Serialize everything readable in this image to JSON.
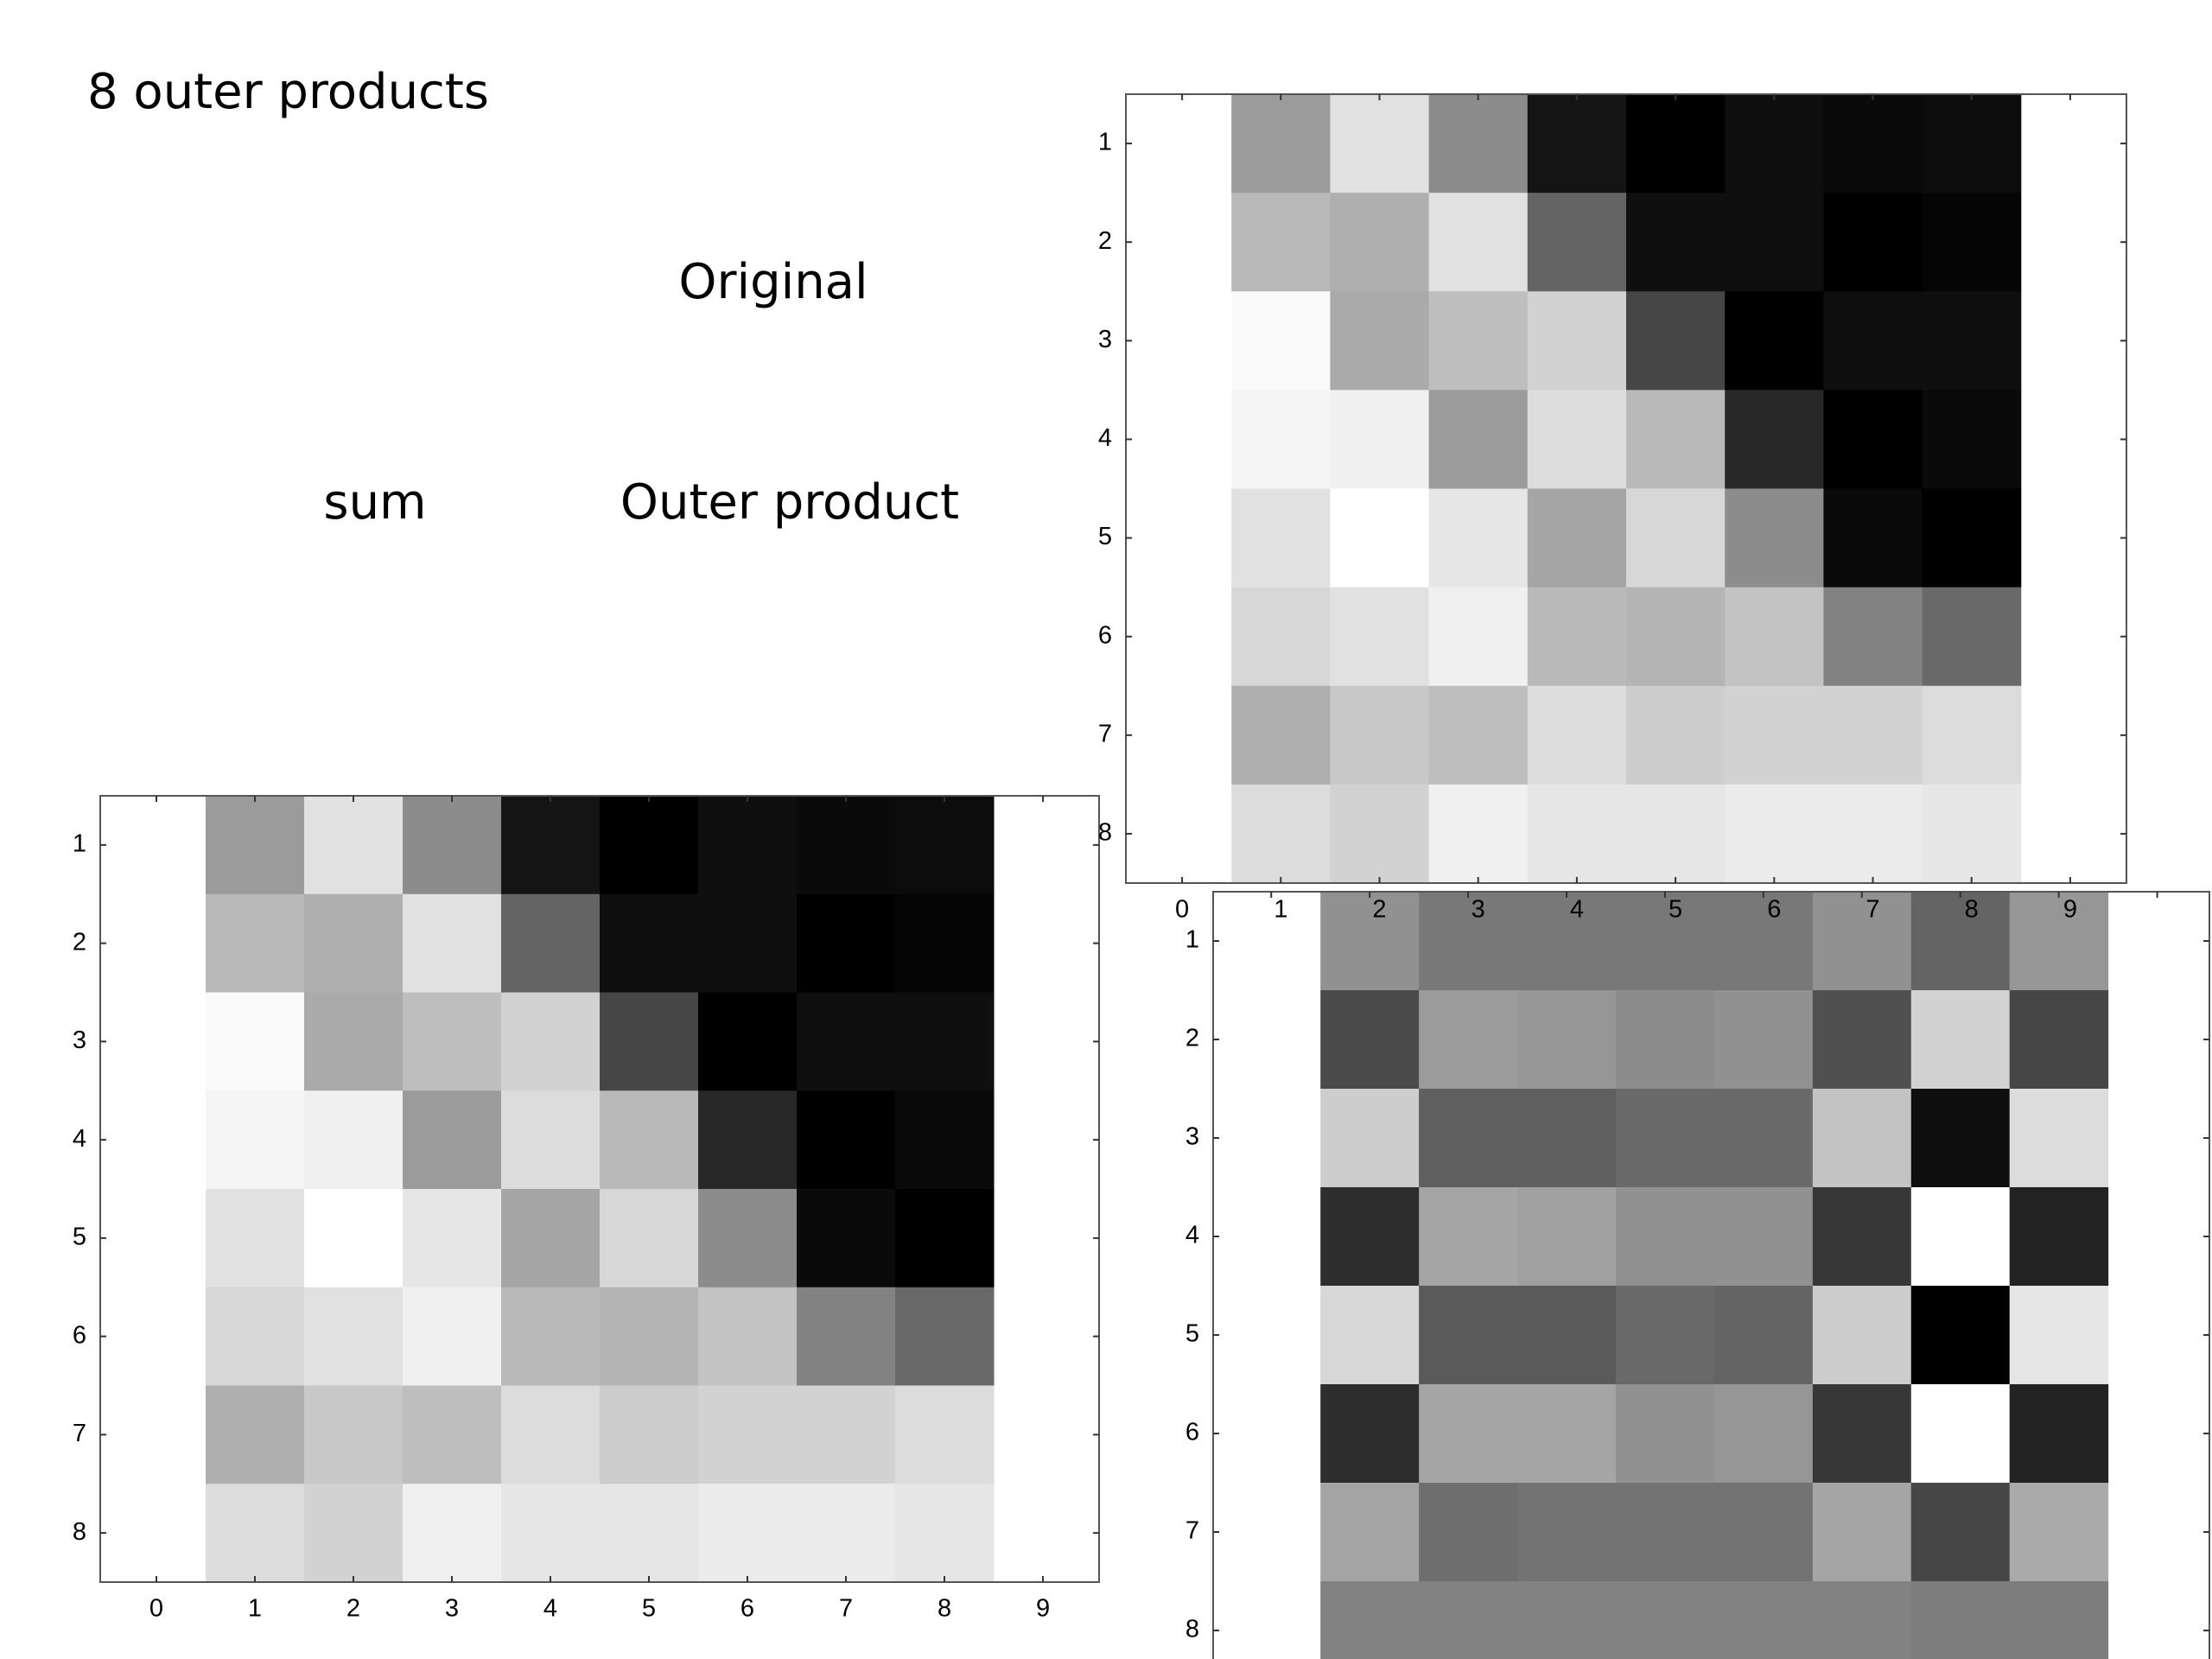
{
  "slide": {
    "title": "8 outer products",
    "labels": {
      "original": "Original",
      "sum": "sum",
      "outer_product": "Outer product"
    }
  },
  "chart_data": [
    {
      "type": "heatmap",
      "colormap": "gray",
      "y_reversed": true,
      "show_xtick_labels": true,
      "xlim": [
        -0.57,
        9.57
      ],
      "ylim": [
        0.5,
        8.5
      ],
      "xticks": [
        0,
        1,
        2,
        3,
        4,
        5,
        6,
        7,
        8,
        9
      ],
      "yticks": [
        1,
        2,
        3,
        4,
        5,
        6,
        7,
        8
      ],
      "values": [
        [
          155,
          225,
          140,
          20,
          0,
          15,
          10,
          12
        ],
        [
          185,
          175,
          225,
          100,
          15,
          15,
          0,
          5
        ],
        [
          250,
          170,
          190,
          210,
          70,
          0,
          15,
          15
        ],
        [
          245,
          240,
          155,
          220,
          185,
          40,
          0,
          10
        ],
        [
          225,
          255,
          230,
          165,
          215,
          140,
          10,
          0
        ],
        [
          215,
          225,
          240,
          185,
          180,
          195,
          130,
          105
        ],
        [
          175,
          200,
          190,
          220,
          205,
          210,
          210,
          220
        ],
        [
          220,
          210,
          240,
          230,
          230,
          235,
          235,
          230
        ]
      ]
    },
    {
      "type": "heatmap",
      "colormap": "gray",
      "y_reversed": true,
      "show_xtick_labels": false,
      "xlim": [
        -0.59,
        9.53
      ],
      "ylim": [
        0.5,
        8.5
      ],
      "xticks": [
        0,
        1,
        2,
        3,
        4,
        5,
        6,
        7,
        8,
        9
      ],
      "yticks": [
        1,
        2,
        3,
        4,
        5,
        6,
        7,
        8
      ],
      "values": [
        [
          145,
          120,
          120,
          120,
          120,
          145,
          100,
          150
        ],
        [
          75,
          155,
          150,
          140,
          145,
          80,
          210,
          70
        ],
        [
          205,
          95,
          95,
          105,
          105,
          195,
          15,
          220
        ],
        [
          45,
          165,
          160,
          145,
          145,
          55,
          255,
          35
        ],
        [
          215,
          90,
          90,
          105,
          100,
          205,
          0,
          230
        ],
        [
          45,
          165,
          165,
          145,
          150,
          55,
          255,
          35
        ],
        [
          165,
          110,
          115,
          115,
          115,
          165,
          70,
          170
        ],
        [
          130,
          130,
          130,
          130,
          130,
          130,
          125,
          125
        ]
      ]
    },
    {
      "type": "heatmap",
      "colormap": "gray",
      "y_reversed": true,
      "show_xtick_labels": true,
      "xlim": [
        -0.57,
        9.57
      ],
      "ylim": [
        0.5,
        8.5
      ],
      "xticks": [
        0,
        1,
        2,
        3,
        4,
        5,
        6,
        7,
        8,
        9
      ],
      "yticks": [
        1,
        2,
        3,
        4,
        5,
        6,
        7,
        8
      ],
      "values": [
        [
          155,
          225,
          140,
          20,
          0,
          15,
          10,
          12
        ],
        [
          185,
          175,
          225,
          100,
          15,
          15,
          0,
          5
        ],
        [
          250,
          170,
          190,
          210,
          70,
          0,
          15,
          15
        ],
        [
          245,
          240,
          155,
          220,
          185,
          40,
          0,
          10
        ],
        [
          225,
          255,
          230,
          165,
          215,
          140,
          10,
          0
        ],
        [
          215,
          225,
          240,
          185,
          180,
          195,
          130,
          105
        ],
        [
          175,
          200,
          190,
          220,
          205,
          210,
          210,
          220
        ],
        [
          220,
          210,
          240,
          230,
          230,
          235,
          235,
          230
        ]
      ]
    }
  ]
}
